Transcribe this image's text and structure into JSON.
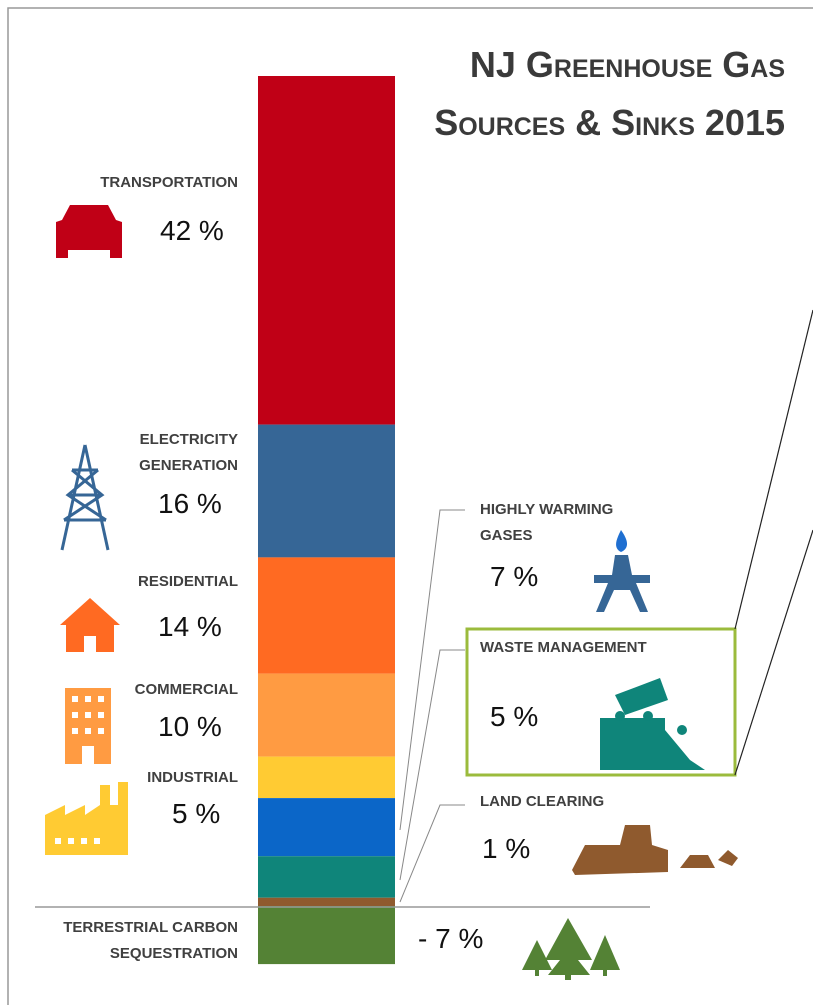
{
  "chart_data": {
    "type": "stacked-bar",
    "title": "NJ Greenhouse Gas Sources & Sinks 2015",
    "categories": [
      "TRANSPORTATION",
      "ELECTRICITY GENERATION",
      "RESIDENTIAL",
      "COMMERCIAL",
      "INDUSTRIAL",
      "HIGHLY WARMING GASES",
      "WASTE MANAGEMENT",
      "LAND CLEARING",
      "TERRESTRIAL CARBON SEQUESTRATION"
    ],
    "values": [
      42,
      16,
      14,
      10,
      5,
      7,
      5,
      1,
      -7
    ],
    "value_labels": [
      "42 %",
      "16 %",
      "14 %",
      "10 %",
      "5 %",
      "7 %",
      "5 %",
      "1 %",
      "- 7 %"
    ],
    "colors": [
      "#c00016",
      "#366696",
      "#ff6a22",
      "#ff9b42",
      "#ffcb33",
      "#0b66c8",
      "#0f857a",
      "#8f5a2e",
      "#548235"
    ]
  }
}
